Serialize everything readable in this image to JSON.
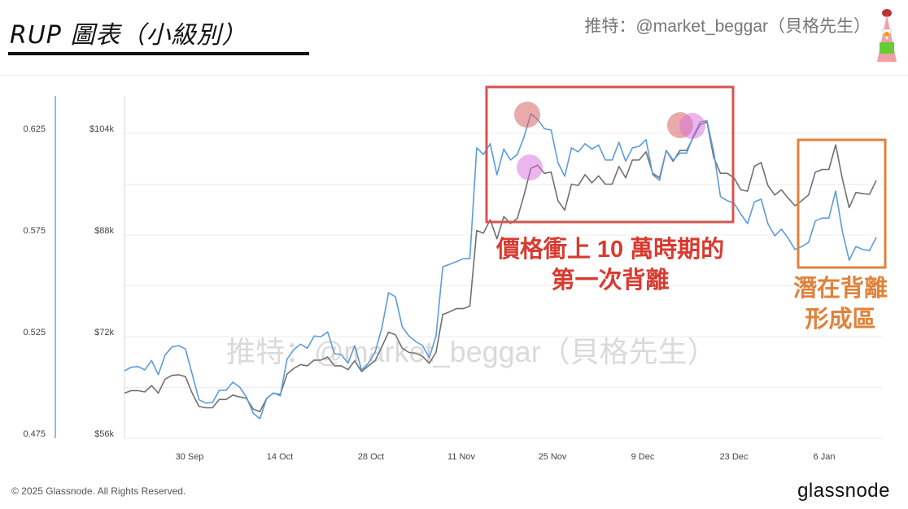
{
  "header": {
    "title": "RUP 圖表（小級別）",
    "handle": "推特：@market_beggar（貝格先生）"
  },
  "watermark": "推特：@market_beggar（貝格先生）",
  "annotations": {
    "red_box_label": [
      "價格衝上 10 萬時期的",
      "第一次背離"
    ],
    "orange_box_label": [
      "潛在背離",
      "形成區"
    ],
    "red_color": "#d9534f",
    "orange_color": "#e0823a"
  },
  "footer": {
    "copyright": "© 2025 Glassnode. All Rights Reserved.",
    "logo": "glassnode"
  },
  "chart_data": {
    "type": "line",
    "x_tick_labels": [
      "30 Sep",
      "14 Oct",
      "28 Oct",
      "11 Nov",
      "25 Nov",
      "9 Dec",
      "23 Dec",
      "6 Jan"
    ],
    "left_axis": {
      "ticks": [
        "0.625",
        "0.575",
        "0.525",
        "0.475"
      ],
      "ylim": [
        0.475,
        0.625
      ],
      "color": "#6aa6e0"
    },
    "right_axis": {
      "ticks": [
        "$104k",
        "$88k",
        "$72k",
        "$56k"
      ],
      "ylim": [
        56,
        104
      ]
    },
    "grid": true,
    "series": [
      {
        "axis": "left",
        "color": "#5b9be0",
        "values": [
          0.5082,
          0.5099,
          0.5103,
          0.5086,
          0.5133,
          0.5063,
          0.5159,
          0.5199,
          0.5206,
          0.5189,
          0.5066,
          0.4939,
          0.4923,
          0.4926,
          0.4986,
          0.4986,
          0.5026,
          0.5002,
          0.4953,
          0.4873,
          0.4846,
          0.4946,
          0.4973,
          0.4959,
          0.5139,
          0.5186,
          0.5213,
          0.5193,
          0.5253,
          0.525,
          0.5273,
          0.5166,
          0.5162,
          0.5119,
          0.5206,
          0.5086,
          0.5119,
          0.5173,
          0.5293,
          0.5466,
          0.5446,
          0.5299,
          0.5253,
          0.5226,
          0.5206,
          0.5146,
          0.5253,
          0.5593,
          0.5606,
          0.5619,
          0.5633,
          0.5633,
          0.6179,
          0.6146,
          0.6199,
          0.6046,
          0.6173,
          0.6119,
          0.6146,
          0.6233,
          0.6346,
          0.6319,
          0.6273,
          0.6266,
          0.6106,
          0.6039,
          0.6179,
          0.6159,
          0.6199,
          0.6173,
          0.6193,
          0.6119,
          0.6119,
          0.6206,
          0.6113,
          0.6179,
          0.6186,
          0.6219,
          0.6046,
          0.6019,
          0.6166,
          0.6119,
          0.6153,
          0.6153,
          0.6239,
          0.6306,
          0.6313,
          0.6159,
          0.5939,
          0.5919,
          0.5906,
          0.5853,
          0.5806,
          0.5913,
          0.5926,
          0.5806,
          0.5746,
          0.5779,
          0.5733,
          0.5679,
          0.5693,
          0.5713,
          0.5819,
          0.5833,
          0.5833,
          0.5966,
          0.5766,
          0.5626,
          0.5693,
          0.5679,
          0.5673,
          0.5739
        ]
      },
      {
        "axis": "right",
        "color": "#707070",
        "values": [
          63.1,
          63.5,
          63.5,
          63.3,
          64.3,
          63.1,
          65.3,
          65.9,
          66.0,
          65.7,
          63.1,
          61.0,
          60.8,
          60.8,
          62.1,
          62.1,
          62.8,
          62.5,
          62.3,
          60.6,
          60.2,
          62.3,
          63.1,
          62.9,
          66.1,
          67.0,
          67.6,
          67.4,
          68.3,
          68.3,
          68.8,
          67.4,
          67.4,
          66.8,
          68.2,
          66.5,
          67.4,
          68.2,
          70.4,
          72.7,
          72.3,
          70.2,
          69.5,
          69.4,
          68.9,
          67.8,
          69.5,
          75.5,
          75.9,
          76.4,
          76.4,
          76.8,
          88.7,
          88.3,
          90.4,
          87.4,
          90.9,
          89.8,
          90.6,
          94.3,
          98.5,
          99.0,
          97.7,
          97.9,
          93.4,
          91.9,
          96.0,
          95.8,
          97.5,
          96.2,
          97.3,
          96.0,
          96.0,
          98.8,
          97.0,
          99.8,
          99.8,
          101.1,
          97.7,
          97.0,
          101.3,
          99.6,
          101.3,
          101.3,
          103.4,
          105.4,
          105.8,
          100.2,
          97.7,
          97.7,
          97.0,
          95.1,
          94.9,
          98.8,
          99.4,
          95.8,
          94.3,
          95.1,
          93.8,
          92.6,
          93.4,
          94.3,
          97.9,
          98.3,
          98.3,
          102.2,
          96.8,
          92.3,
          94.7,
          94.5,
          94.4,
          96.6
        ]
      }
    ]
  }
}
